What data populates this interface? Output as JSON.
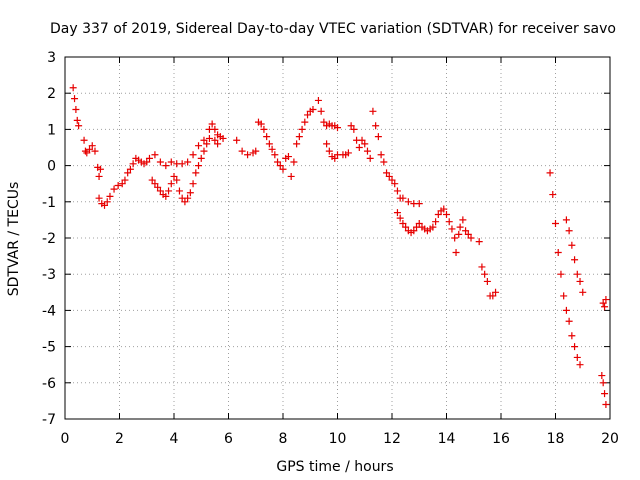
{
  "chart_data": {
    "type": "scatter",
    "title": "Day 337 of 2019, Sidereal Day-to-day VTEC variation (SDTVAR) for receiver savo",
    "xlabel": "GPS time / hours",
    "ylabel": "SDTVAR / TECUs",
    "xlim": [
      0,
      20
    ],
    "ylim": [
      -7,
      3
    ],
    "x_ticks": [
      0,
      2,
      4,
      6,
      8,
      10,
      12,
      14,
      16,
      18,
      20
    ],
    "y_ticks": [
      3,
      2,
      1,
      0,
      -1,
      -2,
      -3,
      -4,
      -5,
      -6,
      -7
    ],
    "grid": true,
    "marker": "+",
    "marker_color": "#e60000",
    "series": [
      {
        "name": "SDTVAR",
        "points": [
          [
            0.3,
            2.15
          ],
          [
            0.35,
            1.85
          ],
          [
            0.4,
            1.55
          ],
          [
            0.45,
            1.25
          ],
          [
            0.5,
            1.1
          ],
          [
            0.7,
            0.7
          ],
          [
            0.75,
            0.4
          ],
          [
            0.8,
            0.35
          ],
          [
            0.9,
            0.45
          ],
          [
            1.0,
            0.55
          ],
          [
            1.1,
            0.4
          ],
          [
            1.2,
            -0.05
          ],
          [
            1.25,
            -0.3
          ],
          [
            1.3,
            -0.1
          ],
          [
            1.25,
            -0.9
          ],
          [
            1.35,
            -1.05
          ],
          [
            1.45,
            -1.1
          ],
          [
            1.55,
            -1.0
          ],
          [
            1.65,
            -0.85
          ],
          [
            1.8,
            -0.65
          ],
          [
            1.95,
            -0.55
          ],
          [
            2.1,
            -0.5
          ],
          [
            2.2,
            -0.4
          ],
          [
            2.3,
            -0.2
          ],
          [
            2.4,
            -0.1
          ],
          [
            2.5,
            0.05
          ],
          [
            2.6,
            0.2
          ],
          [
            2.7,
            0.15
          ],
          [
            2.8,
            0.1
          ],
          [
            2.9,
            0.05
          ],
          [
            3.0,
            0.1
          ],
          [
            3.1,
            0.2
          ],
          [
            3.2,
            -0.4
          ],
          [
            3.3,
            -0.5
          ],
          [
            3.4,
            -0.6
          ],
          [
            3.5,
            -0.7
          ],
          [
            3.6,
            -0.8
          ],
          [
            3.7,
            -0.85
          ],
          [
            3.8,
            -0.7
          ],
          [
            3.9,
            -0.5
          ],
          [
            4.0,
            -0.3
          ],
          [
            4.1,
            -0.4
          ],
          [
            4.2,
            -0.7
          ],
          [
            4.3,
            -0.9
          ],
          [
            4.4,
            -1.0
          ],
          [
            4.5,
            -0.9
          ],
          [
            4.6,
            -0.75
          ],
          [
            4.7,
            -0.5
          ],
          [
            4.8,
            -0.2
          ],
          [
            4.9,
            0.0
          ],
          [
            5.0,
            0.2
          ],
          [
            5.1,
            0.4
          ],
          [
            5.2,
            0.6
          ],
          [
            5.3,
            1.0
          ],
          [
            5.4,
            1.15
          ],
          [
            5.5,
            1.0
          ],
          [
            5.6,
            0.85
          ],
          [
            5.7,
            0.8
          ],
          [
            5.8,
            0.75
          ],
          [
            3.3,
            0.3
          ],
          [
            3.5,
            0.1
          ],
          [
            3.7,
            0.0
          ],
          [
            3.9,
            0.1
          ],
          [
            4.1,
            0.05
          ],
          [
            4.3,
            0.05
          ],
          [
            4.5,
            0.1
          ],
          [
            4.7,
            0.3
          ],
          [
            4.9,
            0.55
          ],
          [
            5.1,
            0.7
          ],
          [
            5.3,
            0.75
          ],
          [
            5.5,
            0.7
          ],
          [
            5.6,
            0.6
          ],
          [
            6.3,
            0.7
          ],
          [
            6.5,
            0.4
          ],
          [
            6.7,
            0.3
          ],
          [
            6.9,
            0.35
          ],
          [
            7.0,
            0.4
          ],
          [
            7.1,
            1.2
          ],
          [
            7.2,
            1.15
          ],
          [
            7.3,
            1.0
          ],
          [
            7.4,
            0.8
          ],
          [
            7.5,
            0.6
          ],
          [
            7.6,
            0.45
          ],
          [
            7.7,
            0.3
          ],
          [
            7.8,
            0.1
          ],
          [
            7.9,
            0.0
          ],
          [
            8.0,
            -0.1
          ],
          [
            8.1,
            0.2
          ],
          [
            8.2,
            0.25
          ],
          [
            8.3,
            -0.3
          ],
          [
            8.4,
            0.1
          ],
          [
            8.5,
            0.6
          ],
          [
            8.6,
            0.8
          ],
          [
            8.7,
            1.0
          ],
          [
            8.8,
            1.2
          ],
          [
            8.9,
            1.4
          ],
          [
            9.0,
            1.5
          ],
          [
            9.1,
            1.55
          ],
          [
            9.3,
            1.8
          ],
          [
            9.4,
            1.5
          ],
          [
            9.5,
            1.2
          ],
          [
            9.6,
            1.1
          ],
          [
            9.7,
            1.15
          ],
          [
            9.8,
            1.1
          ],
          [
            9.9,
            1.1
          ],
          [
            10.0,
            1.05
          ],
          [
            9.6,
            0.6
          ],
          [
            9.7,
            0.4
          ],
          [
            9.8,
            0.25
          ],
          [
            9.9,
            0.2
          ],
          [
            10.0,
            0.3
          ],
          [
            10.2,
            0.3
          ],
          [
            10.3,
            0.3
          ],
          [
            10.4,
            0.35
          ],
          [
            10.5,
            1.1
          ],
          [
            10.6,
            1.0
          ],
          [
            10.7,
            0.7
          ],
          [
            10.8,
            0.5
          ],
          [
            10.9,
            0.7
          ],
          [
            11.0,
            0.6
          ],
          [
            11.1,
            0.4
          ],
          [
            11.2,
            0.2
          ],
          [
            11.3,
            1.5
          ],
          [
            11.4,
            1.1
          ],
          [
            11.5,
            0.8
          ],
          [
            11.6,
            0.3
          ],
          [
            11.7,
            0.1
          ],
          [
            11.8,
            -0.2
          ],
          [
            11.9,
            -0.3
          ],
          [
            12.0,
            -0.4
          ],
          [
            12.1,
            -0.5
          ],
          [
            12.2,
            -0.7
          ],
          [
            12.3,
            -0.9
          ],
          [
            12.2,
            -1.3
          ],
          [
            12.3,
            -1.45
          ],
          [
            12.4,
            -1.6
          ],
          [
            12.5,
            -1.7
          ],
          [
            12.6,
            -1.8
          ],
          [
            12.7,
            -1.85
          ],
          [
            12.8,
            -1.8
          ],
          [
            12.9,
            -1.7
          ],
          [
            13.0,
            -1.6
          ],
          [
            12.4,
            -0.9
          ],
          [
            12.6,
            -1.0
          ],
          [
            12.8,
            -1.05
          ],
          [
            13.0,
            -1.05
          ],
          [
            13.1,
            -1.7
          ],
          [
            13.2,
            -1.75
          ],
          [
            13.3,
            -1.8
          ],
          [
            13.4,
            -1.75
          ],
          [
            13.5,
            -1.7
          ],
          [
            13.6,
            -1.55
          ],
          [
            13.7,
            -1.35
          ],
          [
            13.8,
            -1.25
          ],
          [
            13.9,
            -1.2
          ],
          [
            14.0,
            -1.35
          ],
          [
            14.1,
            -1.55
          ],
          [
            14.2,
            -1.75
          ],
          [
            14.3,
            -2.0
          ],
          [
            14.35,
            -2.4
          ],
          [
            14.45,
            -1.9
          ],
          [
            14.5,
            -1.7
          ],
          [
            14.6,
            -1.5
          ],
          [
            14.7,
            -1.8
          ],
          [
            14.8,
            -1.9
          ],
          [
            14.9,
            -2.0
          ],
          [
            15.2,
            -2.1
          ],
          [
            15.3,
            -2.8
          ],
          [
            15.4,
            -3.0
          ],
          [
            15.5,
            -3.2
          ],
          [
            15.6,
            -3.6
          ],
          [
            15.7,
            -3.6
          ],
          [
            15.8,
            -3.5
          ],
          [
            17.8,
            -0.2
          ],
          [
            17.9,
            -0.8
          ],
          [
            18.0,
            -1.6
          ],
          [
            18.1,
            -2.4
          ],
          [
            18.2,
            -3.0
          ],
          [
            18.3,
            -3.6
          ],
          [
            18.4,
            -4.0
          ],
          [
            18.5,
            -4.3
          ],
          [
            18.6,
            -4.7
          ],
          [
            18.7,
            -5.0
          ],
          [
            18.8,
            -5.3
          ],
          [
            18.9,
            -5.5
          ],
          [
            18.4,
            -1.5
          ],
          [
            18.5,
            -1.8
          ],
          [
            18.6,
            -2.2
          ],
          [
            18.7,
            -2.6
          ],
          [
            18.8,
            -3.0
          ],
          [
            18.9,
            -3.2
          ],
          [
            19.0,
            -3.5
          ],
          [
            19.7,
            -5.8
          ],
          [
            19.75,
            -6.0
          ],
          [
            19.8,
            -6.3
          ],
          [
            19.85,
            -6.6
          ],
          [
            19.75,
            -3.8
          ],
          [
            19.8,
            -3.9
          ],
          [
            19.85,
            -3.7
          ]
        ]
      }
    ]
  }
}
